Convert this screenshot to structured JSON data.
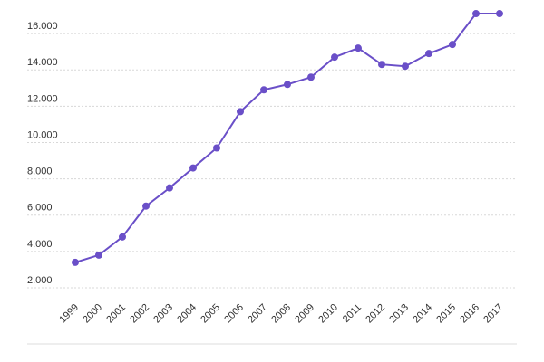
{
  "chart_data": {
    "type": "line",
    "categories": [
      "1999",
      "2000",
      "2001",
      "2002",
      "2003",
      "2004",
      "2005",
      "2006",
      "2007",
      "2008",
      "2009",
      "2010",
      "2011",
      "2012",
      "2013",
      "2014",
      "2015",
      "2016",
      "2017"
    ],
    "values": [
      3400,
      3800,
      4800,
      6500,
      7500,
      8600,
      9700,
      11700,
      12900,
      13200,
      13600,
      14700,
      15200,
      14300,
      14200,
      14900,
      15400,
      17100,
      17100
    ],
    "color": "#6a4fc8",
    "ylim": [
      2000,
      17500
    ],
    "yticks": [
      {
        "value": 2000,
        "label": "2.000"
      },
      {
        "value": 4000,
        "label": "4.000"
      },
      {
        "value": 6000,
        "label": "6.000"
      },
      {
        "value": 8000,
        "label": "8.000"
      },
      {
        "value": 10000,
        "label": "10.000"
      },
      {
        "value": 12000,
        "label": "12.000"
      },
      {
        "value": 14000,
        "label": "14.000"
      },
      {
        "value": 16000,
        "label": "16.000"
      }
    ],
    "grid": true
  }
}
